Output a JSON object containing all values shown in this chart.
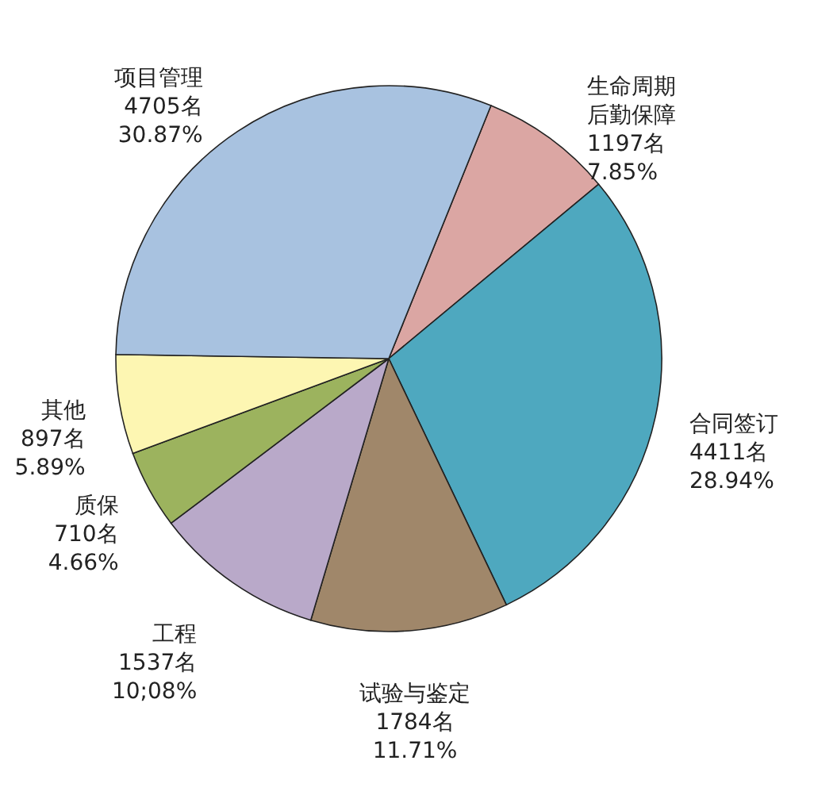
{
  "chart_data": {
    "type": "pie",
    "categories": [
      "生命周期后勤保障",
      "合同签订",
      "试验与鉴定",
      "工程",
      "质保",
      "其他",
      "项目管理"
    ],
    "values": [
      1197,
      4411,
      1784,
      1537,
      710,
      897,
      4705
    ],
    "value_labels": [
      "1197名\n7.85%",
      "4411名\n28.94%",
      "1784名\n11.71%",
      "1537名\n10;08%",
      "710名\n4.66%",
      "897名\n5.89%",
      "4705名\n30.87%"
    ],
    "colors": [
      "#dba6a3",
      "#4ea8bf",
      "#a0876a",
      "#b9a9c9",
      "#9cb35e",
      "#fdf6b2",
      "#a8c2e0"
    ]
  }
}
